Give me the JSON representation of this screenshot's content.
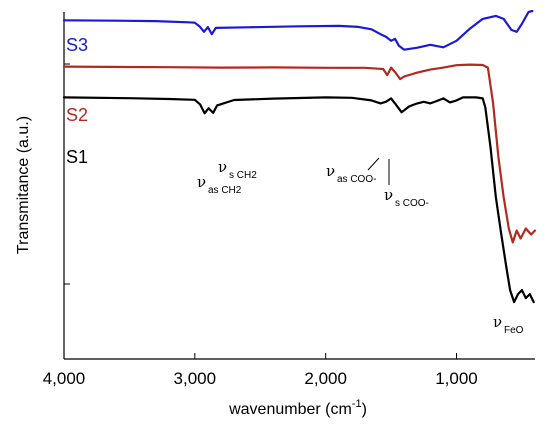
{
  "chart_data": {
    "type": "line",
    "xlabel_main": "wavenumber (cm",
    "xlabel_sup": "-1",
    "xlabel_end": ")",
    "ylabel": "Transmitance (a.u.)",
    "xlim": [
      4000,
      400
    ],
    "x_ticks": [
      4000,
      3000,
      2000,
      1000
    ],
    "x_tick_labels": [
      "4,000",
      "3,000",
      "2,000",
      "1,000"
    ],
    "series": [
      {
        "name": "S3",
        "color": "#1a1ad6",
        "points": [
          [
            4000,
            0.938
          ],
          [
            3600,
            0.936
          ],
          [
            3300,
            0.934
          ],
          [
            3050,
            0.928
          ],
          [
            3000,
            0.926
          ],
          [
            2960,
            0.905
          ],
          [
            2930,
            0.88
          ],
          [
            2900,
            0.904
          ],
          [
            2870,
            0.868
          ],
          [
            2840,
            0.9
          ],
          [
            2600,
            0.903
          ],
          [
            2200,
            0.908
          ],
          [
            1900,
            0.91
          ],
          [
            1750,
            0.905
          ],
          [
            1650,
            0.893
          ],
          [
            1580,
            0.868
          ],
          [
            1540,
            0.855
          ],
          [
            1500,
            0.835
          ],
          [
            1470,
            0.845
          ],
          [
            1440,
            0.81
          ],
          [
            1400,
            0.79
          ],
          [
            1300,
            0.8
          ],
          [
            1200,
            0.815
          ],
          [
            1100,
            0.802
          ],
          [
            1000,
            0.835
          ],
          [
            900,
            0.895
          ],
          [
            800,
            0.945
          ],
          [
            700,
            0.96
          ],
          [
            640,
            0.945
          ],
          [
            580,
            0.89
          ],
          [
            540,
            0.88
          ],
          [
            500,
            0.92
          ],
          [
            450,
            0.98
          ],
          [
            420,
            0.985
          ]
        ]
      },
      {
        "name": "S2",
        "color": "#b12a1f",
        "points": [
          [
            4000,
            0.705
          ],
          [
            3500,
            0.703
          ],
          [
            3200,
            0.702
          ],
          [
            2800,
            0.7
          ],
          [
            2400,
            0.701
          ],
          [
            2000,
            0.699
          ],
          [
            1700,
            0.699
          ],
          [
            1560,
            0.693
          ],
          [
            1530,
            0.662
          ],
          [
            1500,
            0.7
          ],
          [
            1470,
            0.678
          ],
          [
            1430,
            0.642
          ],
          [
            1400,
            0.655
          ],
          [
            1300,
            0.675
          ],
          [
            1200,
            0.69
          ],
          [
            1100,
            0.7
          ],
          [
            1000,
            0.712
          ],
          [
            900,
            0.715
          ],
          [
            800,
            0.713
          ],
          [
            760,
            0.7
          ],
          [
            720,
            0.52
          ],
          [
            680,
            0.25
          ],
          [
            640,
            0.05
          ],
          [
            600,
            -0.11
          ],
          [
            570,
            -0.18
          ],
          [
            540,
            -0.12
          ],
          [
            510,
            -0.16
          ],
          [
            470,
            -0.11
          ],
          [
            430,
            -0.14
          ],
          [
            400,
            -0.12
          ]
        ]
      },
      {
        "name": "S1",
        "color": "#000000",
        "points": [
          [
            4000,
            0.55
          ],
          [
            3500,
            0.546
          ],
          [
            3200,
            0.542
          ],
          [
            3000,
            0.538
          ],
          [
            2960,
            0.515
          ],
          [
            2925,
            0.47
          ],
          [
            2895,
            0.495
          ],
          [
            2860,
            0.472
          ],
          [
            2830,
            0.51
          ],
          [
            2700,
            0.537
          ],
          [
            2400,
            0.544
          ],
          [
            2000,
            0.55
          ],
          [
            1800,
            0.548
          ],
          [
            1650,
            0.535
          ],
          [
            1580,
            0.52
          ],
          [
            1540,
            0.528
          ],
          [
            1500,
            0.545
          ],
          [
            1470,
            0.52
          ],
          [
            1420,
            0.475
          ],
          [
            1360,
            0.505
          ],
          [
            1300,
            0.52
          ],
          [
            1250,
            0.528
          ],
          [
            1200,
            0.52
          ],
          [
            1150,
            0.532
          ],
          [
            1100,
            0.545
          ],
          [
            1050,
            0.525
          ],
          [
            1000,
            0.535
          ],
          [
            950,
            0.55
          ],
          [
            900,
            0.55
          ],
          [
            850,
            0.55
          ],
          [
            800,
            0.545
          ],
          [
            780,
            0.5
          ],
          [
            740,
            0.3
          ],
          [
            700,
            0.05
          ],
          [
            660,
            -0.13
          ],
          [
            620,
            -0.3
          ],
          [
            590,
            -0.42
          ],
          [
            560,
            -0.48
          ],
          [
            530,
            -0.44
          ],
          [
            500,
            -0.42
          ],
          [
            470,
            -0.46
          ],
          [
            440,
            -0.44
          ],
          [
            410,
            -0.48
          ]
        ]
      }
    ],
    "annotations": [
      {
        "symbol": "ν",
        "sub": "as CH2"
      },
      {
        "symbol": "ν",
        "sub": "s CH2"
      },
      {
        "symbol": "ν",
        "sub": "as COO-"
      },
      {
        "symbol": "ν",
        "sub": "s COO-"
      },
      {
        "symbol": "ν",
        "sub": "FeO"
      }
    ]
  }
}
